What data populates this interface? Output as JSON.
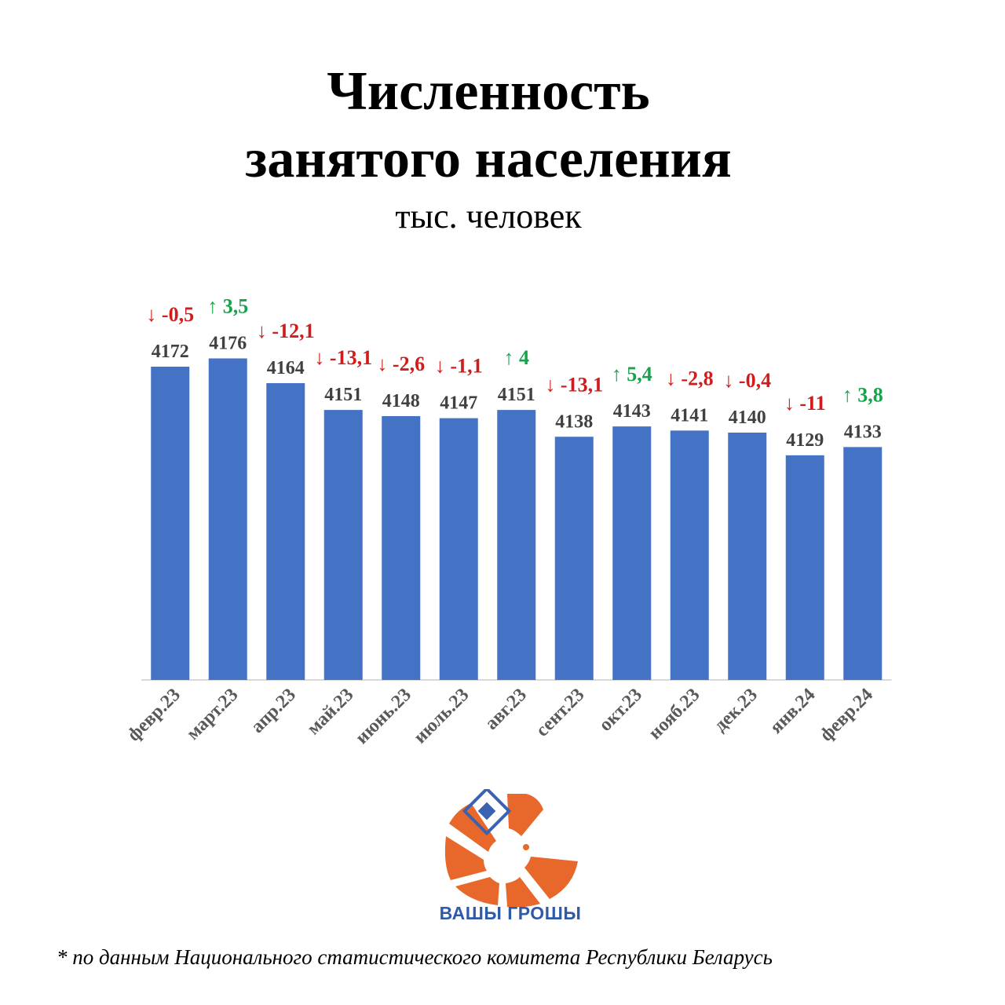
{
  "header": {
    "title_line1": "Численность",
    "title_line2": "занятого населения",
    "subtitle": "тыс. человек"
  },
  "chart_data": {
    "type": "bar",
    "categories": [
      "февр.23",
      "март.23",
      "апр.23",
      "май.23",
      "июнь.23",
      "июль.23",
      "авг.23",
      "сент.23",
      "окт.23",
      "нояб.23",
      "дек.23",
      "янв.24",
      "февр.24"
    ],
    "values": [
      4172,
      4176,
      4164,
      4151,
      4148,
      4147,
      4151,
      4138,
      4143,
      4141,
      4140,
      4129,
      4133
    ],
    "changes": [
      "↓ -0,5",
      "↑ 3,5",
      "↓ -12,1",
      "↓ -13,1",
      "↓ -2,6",
      "↓ -1,1",
      "↑ 4",
      "↓ -13,1",
      "↑ 5,4",
      "↓ -2,8",
      "↓ -0,4",
      "↓ -11",
      "↑ 3,8"
    ],
    "change_dirs": [
      "down",
      "up",
      "down",
      "down",
      "down",
      "down",
      "up",
      "down",
      "up",
      "down",
      "down",
      "down",
      "up"
    ],
    "bar_color": "#4472c4",
    "up_color": "#16a34a",
    "down_color": "#d01c1c",
    "grid": false
  },
  "logo": {
    "text": "ВАШЫ ГРОШЫ",
    "color": "#e8662a"
  },
  "footnote": "* по данным Национального статистического комитета Республики Беларусь"
}
